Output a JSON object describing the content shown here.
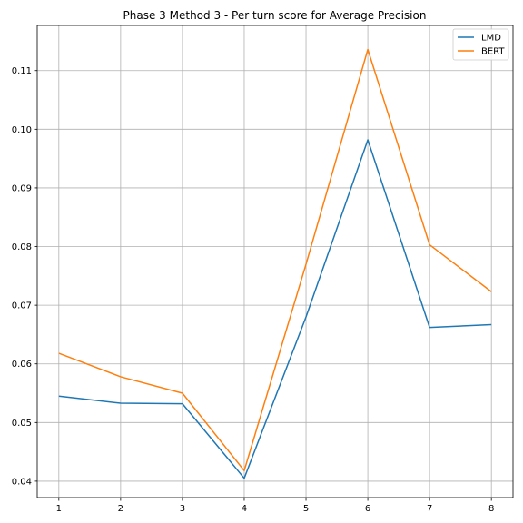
{
  "chart_data": {
    "type": "line",
    "title": "Phase 3 Method 3 - Per turn score for Average Precision",
    "xlabel": "",
    "ylabel": "",
    "x": [
      1,
      2,
      3,
      4,
      5,
      6,
      7,
      8
    ],
    "x_ticks": [
      "1",
      "2",
      "3",
      "4",
      "5",
      "6",
      "7",
      "8"
    ],
    "y_ticks": [
      "0.04",
      "0.05",
      "0.06",
      "0.07",
      "0.08",
      "0.09",
      "0.10",
      "0.11"
    ],
    "xlim": [
      0.65,
      8.35
    ],
    "ylim": [
      0.0372,
      0.1177
    ],
    "grid": true,
    "legend_position": "top-right",
    "series": [
      {
        "name": "LMD",
        "color": "#1f77b4",
        "values": [
          0.0545,
          0.0533,
          0.0532,
          0.0405,
          0.068,
          0.0982,
          0.0662,
          0.0667
        ]
      },
      {
        "name": "BERT",
        "color": "#ff7f0e",
        "values": [
          0.0618,
          0.0578,
          0.055,
          0.0418,
          0.077,
          0.1136,
          0.0803,
          0.0723
        ]
      }
    ]
  }
}
